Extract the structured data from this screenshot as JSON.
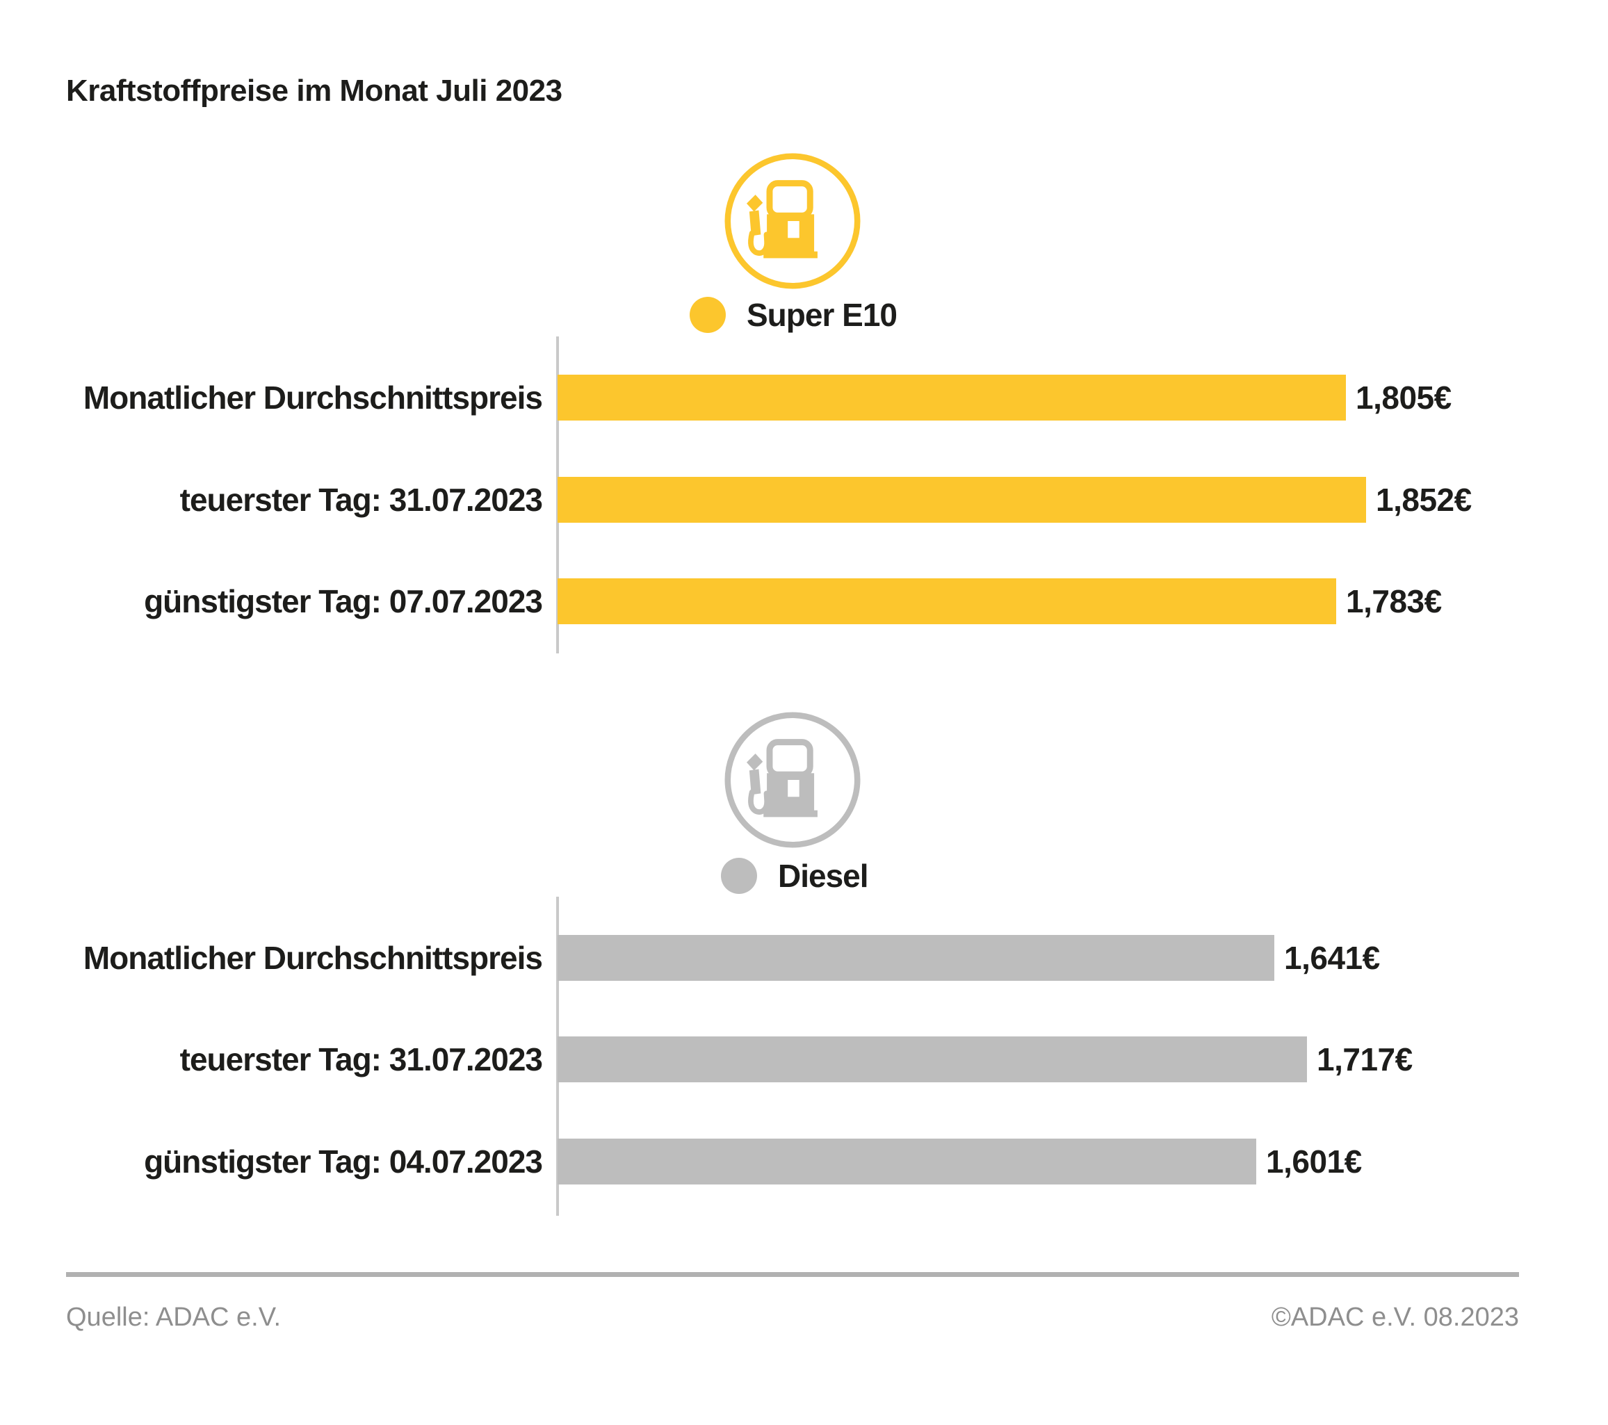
{
  "title": "Kraftstoffpreise im Monat Juli 2023",
  "colors": {
    "super_e10": "#FCC62D",
    "diesel": "#BDBDBD",
    "text": "#1D1D1B",
    "footer_text": "#8E8E8E",
    "axis_line": "#C9C9C9",
    "footer_rule": "#B1B1B1"
  },
  "chart_data": [
    {
      "type": "bar",
      "orientation": "horizontal",
      "legend_label": "Super E10",
      "icon": "fuel-pump-icon",
      "color": "#FCC62D",
      "categories": [
        "Monatlicher Durchschnittspreis",
        "teuerster Tag: 31.07.2023",
        "günstigster Tag: 07.07.2023"
      ],
      "values": [
        1.805,
        1.852,
        1.783
      ],
      "value_labels": [
        "1,805€",
        "1,852€",
        "1,783€"
      ],
      "xlim": [
        0,
        2.0
      ],
      "grid": false,
      "legend_position": "top-center"
    },
    {
      "type": "bar",
      "orientation": "horizontal",
      "legend_label": "Diesel",
      "icon": "fuel-pump-icon",
      "color": "#BDBDBD",
      "categories": [
        "Monatlicher Durchschnittspreis",
        "teuerster Tag: 31.07.2023",
        "günstigster Tag: 04.07.2023"
      ],
      "values": [
        1.641,
        1.717,
        1.601
      ],
      "value_labels": [
        "1,641€",
        "1,717€",
        "1,601€"
      ],
      "xlim": [
        0,
        2.0
      ],
      "grid": false,
      "legend_position": "top-center"
    }
  ],
  "footer": {
    "source": "Quelle: ADAC e.V.",
    "copyright": "©ADAC e.V. 08.2023"
  }
}
